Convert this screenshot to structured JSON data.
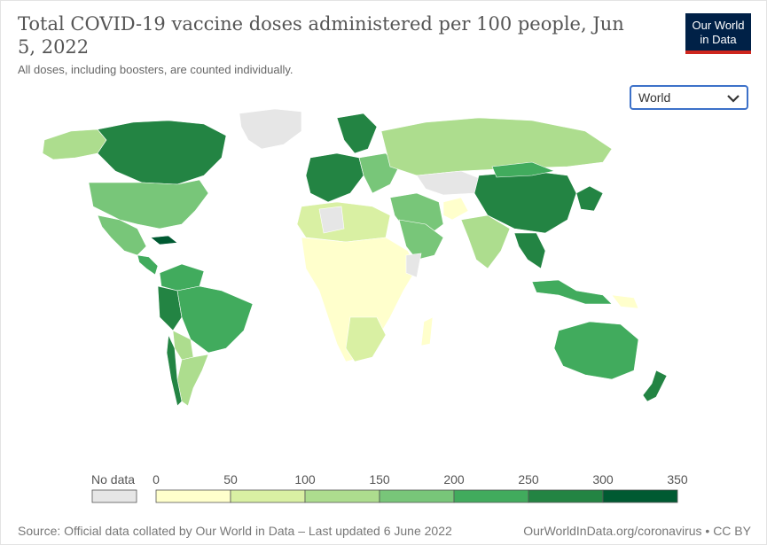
{
  "header": {
    "title": "Total COVID-19 vaccine doses administered per 100 people, Jun 5, 2022",
    "subtitle": "All doses, including boosters, are counted individually."
  },
  "logo": {
    "line1": "Our World",
    "line2": "in Data"
  },
  "region_select": {
    "value": "World"
  },
  "legend": {
    "no_data_label": "No data",
    "ticks": [
      "0",
      "50",
      "100",
      "150",
      "200",
      "250",
      "300",
      "350"
    ],
    "colors": [
      "#ffffcc",
      "#d9f0a3",
      "#addd8e",
      "#78c679",
      "#41ab5d",
      "#238443",
      "#005a32"
    ],
    "no_data_color": "#e6e6e6"
  },
  "footer": {
    "source": "Source: Official data collated by Our World in Data – Last updated 6 June 2022",
    "url": "OurWorldInData.org/coronavirus • CC BY"
  }
}
